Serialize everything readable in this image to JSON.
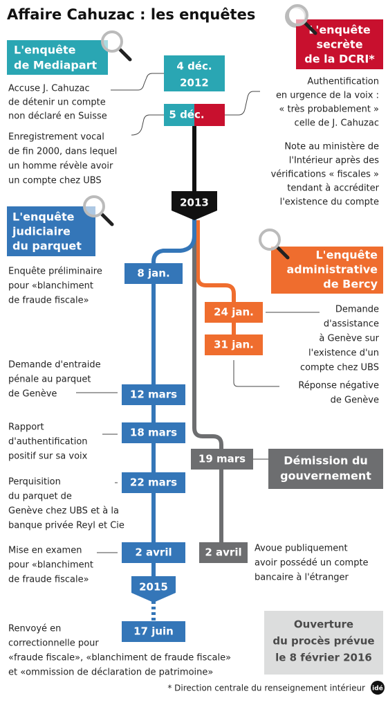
{
  "title": "Affaire Cahuzac : les enquêtes",
  "mediapart": {
    "heading": [
      "L'enquête",
      "de Mediapart"
    ],
    "events": [
      {
        "date": [
          "4 déc.",
          "2012"
        ],
        "text": [
          "Accuse J. Cahuzac",
          "de détenir un compte",
          "non déclaré en Suisse"
        ]
      },
      {
        "date": [
          "5 déc."
        ],
        "text": [
          "Enregistrement vocal",
          "de fin 2000, dans lequel",
          "un homme révèle avoir",
          "un compte chez UBS"
        ]
      }
    ]
  },
  "dcri": {
    "heading": [
      "L'enquête",
      "secrète",
      "de la DCRI*"
    ],
    "texts": [
      [
        "Authentification",
        "en urgence de la voix :",
        "« très probablement »",
        "celle de J. Cahuzac"
      ],
      [
        "Note au ministère de",
        "l'Intérieur après des",
        "vérifications « fiscales »",
        "tendant à accréditer",
        "l'existence du compte"
      ]
    ]
  },
  "years": [
    "2013",
    "2015"
  ],
  "judiciaire": {
    "heading": [
      "L'enquête",
      "judiciaire",
      "du parquet"
    ],
    "events": [
      {
        "date": "8 jan.",
        "text": [
          "Enquête préliminaire",
          "pour «blanchiment",
          "de fraude fiscale»"
        ]
      },
      {
        "date": "12 mars",
        "text": [
          "Demande d'entraide",
          "pénale au parquet",
          "de Genève"
        ]
      },
      {
        "date": "18 mars",
        "text": [
          "Rapport",
          "d'authentification",
          "positif sur sa voix"
        ]
      },
      {
        "date": "22 mars",
        "text": [
          "Perquisition",
          "du parquet de",
          "Genève chez UBS et à la",
          "banque privée Reyl et Cie"
        ]
      },
      {
        "date": "2 avril",
        "text": [
          "Mise en examen",
          "pour «blanchiment",
          "de fraude fiscale»"
        ]
      },
      {
        "date": "17 juin",
        "text": [
          "Renvoyé en",
          "correctionnelle pour",
          "«fraude fiscale», «blanchiment de fraude fiscale»",
          "et «ommission de déclaration de patrimoine»"
        ]
      }
    ]
  },
  "bercy": {
    "heading": [
      "L'enquête",
      "administrative",
      "de Bercy"
    ],
    "events": [
      {
        "date": "24 jan.",
        "text": [
          "Demande",
          "d'assistance",
          "à Genève sur",
          "l'existence d'un",
          "compte chez UBS"
        ]
      },
      {
        "date": "31 jan.",
        "text": [
          "Réponse négative",
          "de Genève"
        ]
      }
    ]
  },
  "gouvernement": {
    "events": [
      {
        "date": "19 mars",
        "text": [
          "Démission du",
          "gouvernement"
        ]
      },
      {
        "date": "2 avril",
        "text": [
          "Avoue publiquement",
          "avoir possédé un compte",
          "bancaire à l'étranger"
        ]
      }
    ]
  },
  "note": [
    "Ouverture",
    "du procès prévue",
    "le 8 février 2016"
  ],
  "footnote": "* Direction centrale du renseignement intérieur",
  "logo": "idé"
}
